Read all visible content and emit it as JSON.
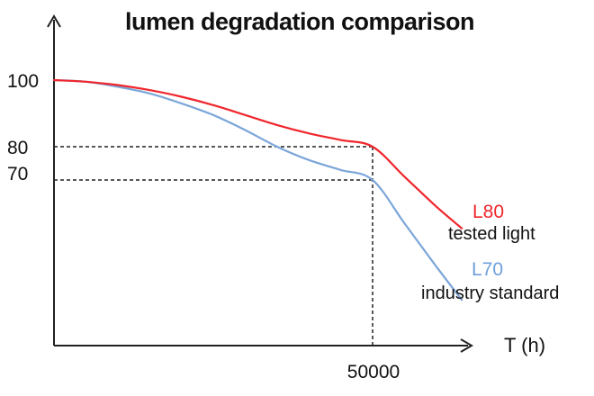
{
  "chart_data": {
    "type": "line",
    "title": "lumen degradation comparison",
    "xlabel": "T (h)",
    "ylabel": "",
    "y_ticks": [
      "100",
      "80",
      "70"
    ],
    "x_ticks": [
      "50000"
    ],
    "series": [
      {
        "name": "L80",
        "description": "tested light",
        "color": "#f0262c",
        "points": [
          [
            0,
            100
          ],
          [
            5000,
            99.5
          ],
          [
            10000,
            98.5
          ],
          [
            15000,
            97
          ],
          [
            20000,
            95
          ],
          [
            25000,
            92.5
          ],
          [
            30000,
            89.5
          ],
          [
            35000,
            86.5
          ],
          [
            40000,
            84
          ],
          [
            45000,
            82
          ],
          [
            50000,
            80
          ],
          [
            55000,
            71
          ],
          [
            60000,
            62
          ],
          [
            64000,
            55.5
          ]
        ]
      },
      {
        "name": "L70",
        "description": "industry standard",
        "color": "#7ba6d9",
        "points": [
          [
            0,
            100
          ],
          [
            5000,
            99.5
          ],
          [
            10000,
            98
          ],
          [
            15000,
            96
          ],
          [
            20000,
            93
          ],
          [
            25000,
            89.5
          ],
          [
            30000,
            85
          ],
          [
            35000,
            80
          ],
          [
            40000,
            76
          ],
          [
            45000,
            73
          ],
          [
            50000,
            70
          ],
          [
            55000,
            57
          ],
          [
            60000,
            44
          ],
          [
            64000,
            34
          ]
        ]
      }
    ],
    "reference_lines": [
      {
        "y": 80,
        "x_end": 50000
      },
      {
        "y": 70,
        "x_end": 50000
      },
      {
        "x": 50000
      }
    ]
  }
}
